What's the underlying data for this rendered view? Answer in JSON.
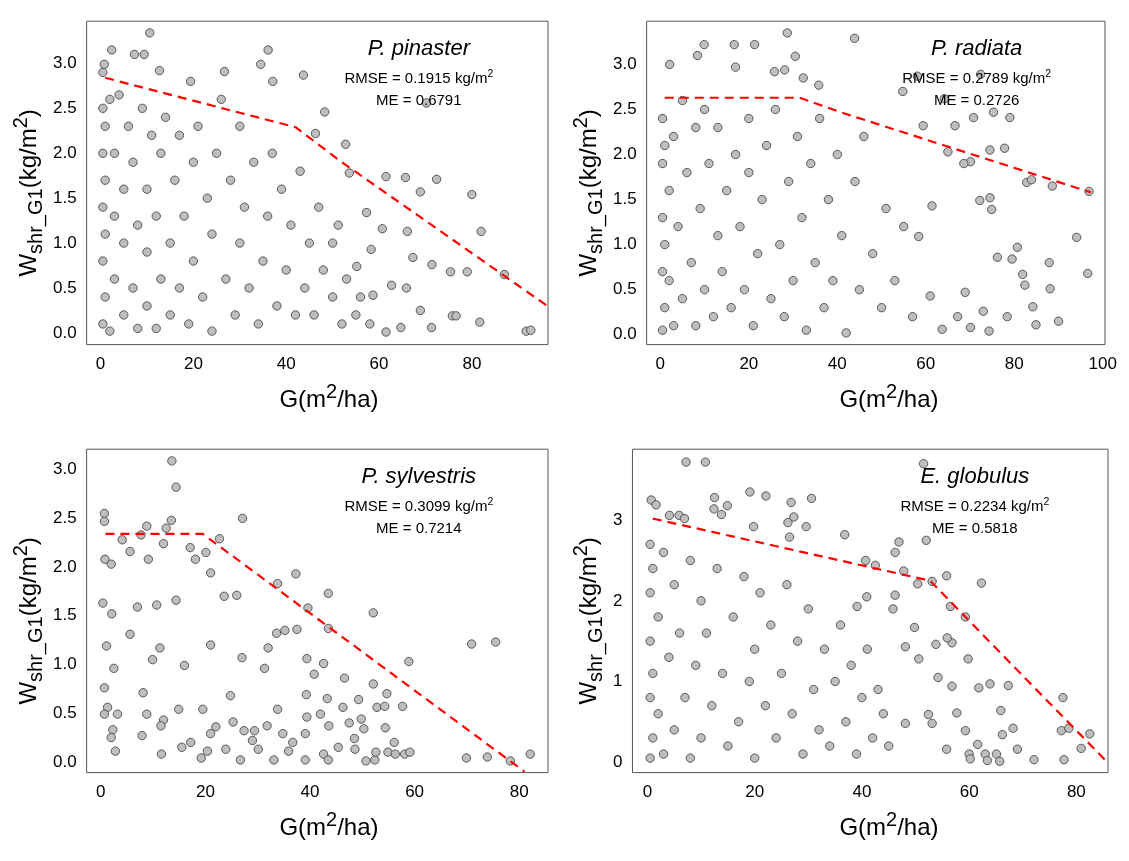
{
  "chart_data": [
    {
      "type": "scatter",
      "title": "P. pinaster",
      "xlabel": "G(m$^{2}$/ha)",
      "ylabel": "W$_{shr_G1}$(kg/m$^{2}$)",
      "annotations": [
        "RMSE = 0.1915 kg/m$^{2}$",
        "ME = 0.6791"
      ],
      "xlim": [
        -3,
        96.4
      ],
      "ylim": [
        -0.13,
        3.47
      ],
      "xticks": [
        0,
        20,
        40,
        60,
        80
      ],
      "yticks": [
        {
          "value": 0,
          "label": "0.0"
        },
        {
          "value": 0.5,
          "label": "0.5"
        },
        {
          "value": 1,
          "label": "1.0"
        },
        {
          "value": 1.5,
          "label": "1.5"
        },
        {
          "value": 2,
          "label": "2.0"
        },
        {
          "value": 2.5,
          "label": "2.5"
        },
        {
          "value": 3,
          "label": "3.0"
        }
      ],
      "series": [
        {
          "color": "#bebebe",
          "marker": "circle",
          "x": [
            10.6,
            2.4,
            36.1,
            7.3,
            9.4,
            0.5,
            0.8,
            34.5,
            12.7,
            26.7,
            43.7,
            37.1,
            19.4,
            70.2,
            48.3,
            46.3,
            52.8,
            53.6,
            61.5,
            65.7,
            72.4,
            80,
            68.9,
            57.3,
            60.7,
            66.1,
            82,
            51.2,
            58.3,
            67.3,
            71.4,
            55.2,
            75.4,
            79,
            87,
            68.9,
            75.8,
            76.6,
            81.7,
            71.3,
            91.7,
            92.7,
            61.5,
            58.7,
            62.7,
            65.9,
            64.7,
            0.5,
            0.5,
            0.5,
            0.5,
            0.5,
            1,
            1,
            1,
            1,
            2,
            2,
            3,
            3,
            3,
            4,
            5,
            5,
            5,
            6,
            7,
            7,
            8,
            8,
            9,
            10,
            10,
            10,
            11,
            12,
            12,
            13,
            13,
            14,
            15,
            15,
            16,
            17,
            17,
            18,
            19,
            20,
            20,
            21,
            22,
            23,
            24,
            24,
            25,
            26,
            27,
            28,
            29,
            30,
            30,
            31,
            32,
            33,
            34,
            35,
            36,
            37,
            38,
            39,
            40,
            41,
            42,
            43,
            44,
            45,
            46,
            47,
            48,
            50,
            50,
            52,
            53,
            55,
            56,
            58
          ],
          "values": [
            3.34,
            3.15,
            3.15,
            3.1,
            3.1,
            2.9,
            2.99,
            2.99,
            2.92,
            2.91,
            2.87,
            2.8,
            2.8,
            2.56,
            2.46,
            2.22,
            2.1,
            1.78,
            1.74,
            1.73,
            1.71,
            1.54,
            1.57,
            1.34,
            1.16,
            1.13,
            1.13,
            1.2,
            0.93,
            0.84,
            0.76,
            0.74,
            0.68,
            0.68,
            0.65,
            0.25,
            0.19,
            0.19,
            0.12,
            0.06,
            0.02,
            0.03,
            0.01,
            0.42,
            0.53,
            0.5,
            0.06,
            0.1,
            0.8,
            1.4,
            2.0,
            2.5,
            0.4,
            1.1,
            1.7,
            2.3,
            0.02,
            2.6,
            0.6,
            1.3,
            2.0,
            2.65,
            0.2,
            1.0,
            1.6,
            2.3,
            0.5,
            1.9,
            0.05,
            1.2,
            2.5,
            0.3,
            0.9,
            1.6,
            2.2,
            0.05,
            1.3,
            0.6,
            2.0,
            2.4,
            0.2,
            1.0,
            1.7,
            0.5,
            2.2,
            1.3,
            0.1,
            0.8,
            1.9,
            2.3,
            0.4,
            1.5,
            0.02,
            1.1,
            2.0,
            2.6,
            0.6,
            1.7,
            0.2,
            1.0,
            2.3,
            1.4,
            0.5,
            1.9,
            0.1,
            0.8,
            1.3,
            2.0,
            0.3,
            1.6,
            0.7,
            1.2,
            0.2,
            1.8,
            0.5,
            1.0,
            0.2,
            1.4,
            0.7,
            0.4,
            1.0,
            0.1,
            0.6,
            0.2,
            0.4,
            0.1
          ]
        },
        {
          "type": "line",
          "color": "#ff0000",
          "line_style": "dashed",
          "x": [
            1,
            42,
            52,
            96
          ],
          "values": [
            2.84,
            2.29,
            1.9,
            0.31
          ]
        }
      ]
    },
    {
      "type": "scatter",
      "title": "P. radiata",
      "xlabel": "G(m$^{2}$/ha)",
      "ylabel": "W$_{shr_G1}$(kg/m$^{2}$)",
      "annotations": [
        "RMSE = 0.2789 kg/m$^{2}$",
        "ME = 0.2726"
      ],
      "xlim": [
        -3.1,
        100.5
      ],
      "ylim": [
        -0.11,
        3.48
      ],
      "xticks": [
        0,
        20,
        40,
        60,
        80,
        100
      ],
      "yticks": [
        {
          "value": 0,
          "label": "0.0"
        },
        {
          "value": 0.5,
          "label": "0.5"
        },
        {
          "value": 1,
          "label": "1.0"
        },
        {
          "value": 1.5,
          "label": "1.5"
        },
        {
          "value": 2,
          "label": "2.0"
        },
        {
          "value": 2.5,
          "label": "2.5"
        },
        {
          "value": 3,
          "label": "3.0"
        }
      ],
      "series": [
        {
          "color": "#bebebe",
          "marker": "circle",
          "x": [
            28.7,
            43.9,
            9.9,
            16.7,
            21.3,
            8.4,
            30.5,
            2.1,
            17,
            25.8,
            28.1,
            32.3,
            72.4,
            58.1,
            54.8,
            64.2,
            35.8,
            70.8,
            75.3,
            79,
            59.4,
            66.6,
            77.8,
            74.5,
            65,
            70.1,
            68.6,
            82.8,
            83.9,
            88.6,
            96.9,
            74.5,
            72.2,
            74.9,
            61.4,
            58.4,
            94.1,
            80.7,
            76.2,
            79.5,
            87.9,
            96.6,
            81.9,
            82.4,
            88.1,
            84.2,
            73,
            78.4,
            90,
            84.9,
            74.3,
            70.1,
            63.7,
            67.2,
            61,
            68.9,
            0.5,
            0.5,
            0.5,
            0.5,
            0.5,
            1,
            1,
            1,
            2,
            2,
            3,
            3,
            4,
            5,
            5,
            6,
            7,
            8,
            8,
            9,
            10,
            10,
            11,
            12,
            13,
            13,
            14,
            15,
            16,
            17,
            18,
            19,
            20,
            20,
            21,
            22,
            23,
            24,
            25,
            26,
            27,
            28,
            29,
            30,
            31,
            32,
            33,
            34,
            35,
            36,
            37,
            38,
            39,
            40,
            41,
            42,
            44,
            45,
            46,
            48,
            50,
            51,
            53,
            55,
            57
          ],
          "values": [
            3.35,
            3.29,
            3.22,
            3.22,
            3.22,
            3.1,
            3.09,
            3.0,
            2.97,
            2.92,
            2.94,
            2.85,
            2.89,
            2.87,
            2.7,
            2.62,
            2.77,
            2.41,
            2.47,
            2.41,
            2.32,
            2.32,
            2.07,
            2.05,
            2.03,
            1.92,
            1.9,
            1.69,
            1.72,
            1.65,
            1.59,
            1.52,
            1.49,
            1.39,
            1.43,
            1.09,
            1.08,
            0.97,
            0.86,
            0.84,
            0.8,
            0.68,
            0.67,
            0.55,
            0.51,
            0.31,
            0.26,
            0.2,
            0.15,
            0.11,
            0.04,
            0.08,
            0.06,
            0.2,
            0.43,
            0.47,
            0.05,
            0.7,
            1.3,
            1.9,
            2.4,
            0.3,
            1.0,
            2.1,
            0.6,
            1.6,
            0.1,
            2.2,
            1.2,
            0.4,
            2.6,
            1.8,
            0.8,
            0.1,
            2.3,
            1.4,
            0.5,
            2.5,
            1.9,
            0.2,
            1.1,
            2.3,
            0.7,
            1.6,
            0.3,
            2.0,
            1.2,
            0.5,
            2.4,
            1.8,
            0.1,
            0.9,
            1.5,
            2.1,
            0.4,
            2.5,
            1.0,
            0.2,
            1.7,
            0.6,
            2.2,
            1.3,
            0.05,
            1.9,
            0.8,
            2.4,
            0.3,
            1.5,
            0.6,
            2.0,
            1.1,
            0.02,
            1.7,
            0.5,
            2.2,
            0.9,
            0.3,
            1.4,
            0.6,
            1.2,
            0.2
          ]
        },
        {
          "type": "line",
          "color": "#ff0000",
          "line_style": "dashed",
          "x": [
            1,
            31.5,
            40.7,
            97.3
          ],
          "values": [
            2.63,
            2.63,
            2.47,
            1.58
          ]
        }
      ]
    },
    {
      "type": "scatter",
      "title": "P. sylvestris",
      "xlabel": "G(m$^{2}$/ha)",
      "ylabel": "W$_{shr_G1}$(kg/m$^{2}$)",
      "annotations": [
        "RMSE = 0.3099 kg/m$^{2}$",
        "ME = 0.7214"
      ],
      "xlim": [
        -2.7,
        85.5
      ],
      "ylim": [
        -0.11,
        3.21
      ],
      "xticks": [
        0,
        20,
        40,
        60,
        80
      ],
      "yticks": [
        {
          "value": 0,
          "label": "0.0"
        },
        {
          "value": 0.5,
          "label": "0.5"
        },
        {
          "value": 1,
          "label": "1.0"
        },
        {
          "value": 1.5,
          "label": "1.5"
        },
        {
          "value": 2,
          "label": "2.0"
        },
        {
          "value": 2.5,
          "label": "2.5"
        },
        {
          "value": 3,
          "label": "3.0"
        }
      ],
      "series": [
        {
          "color": "#bebebe",
          "marker": "circle",
          "x": [
            13.6,
            14.4,
            0.7,
            0.7,
            27.1,
            13.5,
            8.8,
            12.5,
            22.7,
            4.1,
            7.7,
            12,
            20.1,
            17.1,
            0.8,
            2,
            5.6,
            9.1,
            18.1,
            21,
            37.3,
            33.8,
            43.5,
            26,
            0.4,
            2.1,
            7,
            10.7,
            14.4,
            39.6,
            23.6,
            52.1,
            5.6,
            33.6,
            35.2,
            37.5,
            43.5,
            70.9,
            75.5,
            1.1,
            11.3,
            21,
            32,
            27,
            39.4,
            58.9,
            42.6,
            9.9,
            2.5,
            16,
            31.3,
            40.8,
            46.6,
            0.7,
            8.1,
            39.3,
            54.7,
            52.1,
            24.8,
            49.3,
            43.3,
            1.3,
            46.3,
            52.8,
            54.3,
            57.7,
            0.7,
            3.2,
            14.9,
            19.5,
            33.8,
            39.4,
            42,
            8.8,
            49.8,
            12,
            47.5,
            25.3,
            22,
            29.4,
            50.3,
            54.4,
            2.3,
            11.5,
            43.6,
            31.8,
            34.8,
            39.1,
            7.9,
            2,
            21,
            48.5,
            17.2,
            2.8,
            11.6,
            15.5,
            29,
            36.7,
            56.1,
            19.2,
            20.4,
            26.7,
            30.1,
            33.1,
            35.9,
            39.1,
            42.6,
            45.4,
            43.5,
            50.7,
            52.4,
            52.6,
            54.9,
            56.3,
            58.1,
            59.1,
            69.9,
            73.9,
            78.3,
            82.1,
            23.9,
            48.6,
            27.4
          ],
          "values": [
            3.09,
            2.82,
            2.55,
            2.47,
            2.5,
            2.48,
            2.42,
            2.4,
            2.29,
            2.28,
            2.33,
            2.24,
            2.15,
            2.2,
            2.08,
            2.03,
            2.16,
            2.08,
            2.08,
            1.94,
            1.93,
            1.83,
            1.73,
            1.71,
            1.63,
            1.52,
            1.59,
            1.61,
            1.66,
            1.58,
            1.7,
            1.53,
            1.31,
            1.32,
            1.35,
            1.36,
            1.37,
            1.21,
            1.23,
            1.19,
            1.17,
            1.2,
            1.17,
            1.07,
            1.06,
            1.03,
            1.01,
            1.05,
            0.96,
            0.99,
            0.96,
            0.9,
            0.86,
            0.76,
            0.71,
            0.69,
            0.7,
            0.8,
            0.68,
            0.64,
            0.65,
            0.56,
            0.56,
            0.56,
            0.57,
            0.57,
            0.49,
            0.49,
            0.54,
            0.54,
            0.54,
            0.46,
            0.49,
            0.49,
            0.44,
            0.43,
            0.4,
            0.41,
            0.36,
            0.32,
            0.34,
            0.35,
            0.33,
            0.37,
            0.37,
            0.37,
            0.29,
            0.29,
            0.27,
            0.25,
            0.29,
            0.24,
            0.2,
            0.11,
            0.08,
            0.15,
            0.22,
            0.2,
            0.2,
            0.04,
            0.11,
            0.02,
            0.13,
            0.02,
            0.11,
            0.02,
            0.08,
            0.15,
            0.02,
            0.01,
            0.02,
            0.1,
            0.1,
            0.08,
            0.08,
            0.1,
            0.04,
            0.05,
            0.01,
            0.08,
            0.13,
            0.13,
            0.32
          ]
        },
        {
          "type": "line",
          "color": "#ff0000",
          "line_style": "dashed",
          "x": [
            0.9,
            19.5,
            81
          ],
          "values": [
            2.34,
            2.34,
            -0.1
          ]
        }
      ]
    },
    {
      "type": "scatter",
      "title": "E. globulus",
      "xlabel": "G(m$^{2}$/ha)",
      "ylabel": "W$_{shr_G1}$(kg/m$^{2}$)",
      "annotations": [
        "RMSE = 0.2234 kg/m$^{2}$",
        "ME = 0.5818"
      ],
      "xlim": [
        -2.8,
        85.9
      ],
      "ylim": [
        -0.13,
        3.88
      ],
      "xticks": [
        0,
        20,
        40,
        60,
        80
      ],
      "yticks": [
        0,
        1,
        2,
        3
      ],
      "series": [
        {
          "color": "#bebebe",
          "marker": "circle",
          "x": [
            7.2,
            10.8,
            51.5,
            19.1,
            22.1,
            30.6,
            12.5,
            0.7,
            1.6,
            26.8,
            14.9,
            12.4,
            13.8,
            26.2,
            27.3,
            4.1,
            5.9,
            6.9,
            19.8,
            29.6,
            36.8,
            26.5,
            46.9,
            52,
            46.2,
            40.7,
            42.5,
            47.8,
            55.8,
            62.3,
            53.1,
            50.4,
            56.5,
            59.3,
            49.8,
            46.2,
            40.9,
            39.1,
            45.8,
            53.8,
            56.8,
            55.9,
            59.8,
            50.6,
            48.1,
            63.9,
            67.3,
            61.8,
            56.8,
            54.2,
            77.5,
            65.9,
            57.7,
            59.3,
            68.2,
            77.2,
            78.6,
            82.5,
            66.2,
            80.9,
            69,
            61.6,
            55.8,
            60,
            63,
            65.1,
            72.1,
            77.7,
            60.2,
            63.4,
            65.7,
            52.4,
            48.1,
            53.1,
            0.5,
            0.5,
            0.5,
            0.5,
            0.5,
            1,
            1,
            1,
            2,
            2,
            3,
            3,
            4,
            5,
            5,
            6,
            7,
            8,
            8,
            9,
            10,
            10,
            11,
            12,
            13,
            14,
            15,
            16,
            17,
            18,
            19,
            20,
            20,
            21,
            22,
            23,
            24,
            25,
            26,
            27,
            28,
            29,
            30,
            31,
            32,
            33,
            34,
            35,
            36,
            37,
            38,
            39,
            40,
            41,
            42,
            43,
            44,
            45
          ],
          "values": [
            3.72,
            3.72,
            3.7,
            3.35,
            3.3,
            3.27,
            3.28,
            3.25,
            3.19,
            3.22,
            3.18,
            3.14,
            3.07,
            2.97,
            3.04,
            3.06,
            3.06,
            3.02,
            2.92,
            2.92,
            2.82,
            2.79,
            2.73,
            2.75,
            2.6,
            2.5,
            2.44,
            2.37,
            2.31,
            2.22,
            2.24,
            2.21,
            1.93,
            1.8,
            1.67,
            2.07,
            2.05,
            1.93,
            1.9,
            1.46,
            1.48,
            1.54,
            1.28,
            1.28,
            1.43,
            0.97,
            0.95,
            0.92,
            0.94,
            1.05,
            0.8,
            0.64,
            0.61,
            0.39,
            0.42,
            0.39,
            0.42,
            0.35,
            0.34,
            0.17,
            0.16,
            0.22,
            0.16,
            0.1,
            0.1,
            0.1,
            0.03,
            0.03,
            0.04,
            0.02,
            0.01,
            0.59,
            0.48,
            0.48,
            0.05,
            0.8,
            1.5,
            2.1,
            2.7,
            0.3,
            1.1,
            2.4,
            0.6,
            1.8,
            0.1,
            2.6,
            1.3,
            0.4,
            2.2,
            1.6,
            0.8,
            0.05,
            2.5,
            1.2,
            0.3,
            2.0,
            1.6,
            0.7,
            2.4,
            1.1,
            0.2,
            1.8,
            0.5,
            2.3,
            1.0,
            0.05,
            1.4,
            2.1,
            0.7,
            1.7,
            0.3,
            1.1,
            2.2,
            0.6,
            1.5,
            0.1,
            1.9,
            0.9,
            0.4,
            1.4,
            0.2,
            1.0,
            1.7,
            0.5,
            1.2,
            0.1,
            0.8,
            1.4,
            0.3,
            0.9,
            0.6,
            0.2
          ]
        },
        {
          "type": "line",
          "color": "#ff0000",
          "line_style": "dashed",
          "x": [
            1,
            52.7,
            85.3
          ],
          "values": [
            3.02,
            2.25,
            0.03
          ]
        }
      ]
    }
  ]
}
